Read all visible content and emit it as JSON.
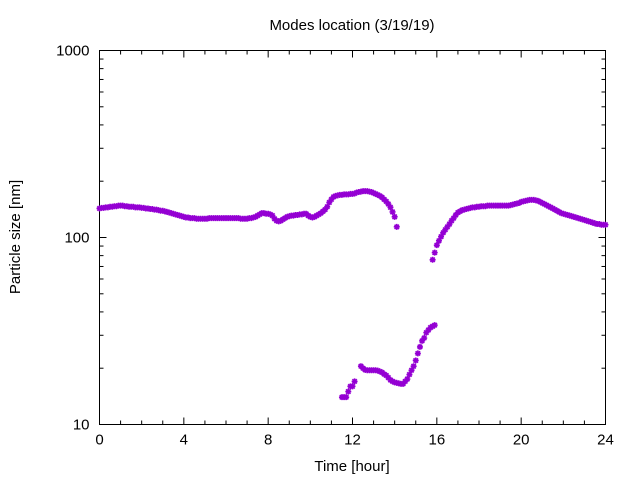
{
  "chart_data": {
    "type": "scatter",
    "title": "Modes location (3/19/19)",
    "xlabel": "Time [hour]",
    "ylabel": "Particle size [nm]",
    "xlim": [
      0,
      24
    ],
    "ylim": [
      10,
      1000
    ],
    "y_scale": "log",
    "x_ticks": [
      0,
      4,
      8,
      12,
      16,
      20,
      24
    ],
    "x_tick_labels": [
      "0",
      "4",
      "8",
      "12",
      "16",
      "20",
      "24"
    ],
    "y_ticks": [
      10,
      100,
      1000
    ],
    "y_tick_labels": [
      "10",
      "100",
      "1000"
    ],
    "grid": false,
    "legend": false,
    "marker_color": "#9400d3",
    "series": [
      {
        "x": [
          0.0,
          0.1,
          0.2,
          0.3,
          0.4,
          0.5,
          0.6,
          0.7,
          0.8,
          0.9,
          1.0,
          1.1,
          1.2,
          1.3,
          1.4,
          1.5,
          1.6,
          1.7,
          1.8,
          1.9,
          2.0,
          2.1,
          2.2,
          2.3,
          2.4,
          2.5,
          2.6,
          2.7,
          2.8,
          2.9,
          3.0,
          3.1,
          3.2,
          3.3,
          3.4,
          3.5,
          3.6,
          3.7,
          3.8,
          3.9,
          4.0,
          4.1,
          4.2,
          4.3,
          4.4,
          4.5,
          4.6,
          4.7,
          4.8,
          4.9,
          5.0,
          5.1,
          5.2,
          5.3,
          5.4,
          5.5,
          5.6,
          5.7,
          5.8,
          5.9,
          6.0,
          6.1,
          6.2,
          6.3,
          6.4,
          6.5,
          6.6,
          6.7,
          6.8,
          6.9,
          7.0,
          7.1,
          7.2,
          7.3,
          7.4,
          7.5,
          7.6,
          7.7,
          7.8,
          7.9,
          8.0,
          8.1,
          8.2,
          8.3,
          8.4,
          8.5,
          8.6,
          8.7,
          8.8,
          8.9,
          9.0,
          9.1,
          9.2,
          9.3,
          9.4,
          9.5,
          9.6,
          9.7,
          9.8,
          9.9,
          10.0,
          10.1,
          10.2,
          10.3,
          10.4,
          10.5,
          10.6,
          10.7,
          10.8,
          10.9,
          11.0,
          11.1,
          11.2,
          11.3,
          11.4,
          11.5,
          11.6,
          11.7,
          11.8,
          11.9,
          12.0,
          12.1,
          12.2,
          12.3,
          12.4,
          12.5,
          12.6,
          12.7,
          12.8,
          12.9,
          13.0,
          13.1,
          13.2,
          13.3,
          13.4,
          13.5,
          13.6,
          13.7,
          13.8,
          13.9,
          14.0,
          14.1,
          15.8,
          15.9,
          16.0,
          16.1,
          16.2,
          16.3,
          16.4,
          16.5,
          16.6,
          16.7,
          16.8,
          16.9,
          17.0,
          17.1,
          17.2,
          17.3,
          17.4,
          17.5,
          17.6,
          17.7,
          17.8,
          17.9,
          18.0,
          18.1,
          18.2,
          18.3,
          18.4,
          18.5,
          18.6,
          18.7,
          18.8,
          18.9,
          19.0,
          19.1,
          19.2,
          19.3,
          19.4,
          19.5,
          19.6,
          19.7,
          19.8,
          19.9,
          20.0,
          20.1,
          20.2,
          20.3,
          20.4,
          20.5,
          20.6,
          20.7,
          20.8,
          20.9,
          21.0,
          21.1,
          21.2,
          21.3,
          21.4,
          21.5,
          21.6,
          21.7,
          21.8,
          21.9,
          22.0,
          22.1,
          22.2,
          22.3,
          22.4,
          22.5,
          22.6,
          22.7,
          22.8,
          22.9,
          23.0,
          23.1,
          23.2,
          23.3,
          23.4,
          23.5,
          23.6,
          23.7,
          23.8,
          23.9,
          24.0
        ],
        "y": [
          143,
          144,
          144,
          145,
          145,
          146,
          146,
          147,
          147,
          148,
          148,
          148,
          147,
          147,
          146,
          146,
          146,
          145,
          145,
          145,
          144,
          144,
          143,
          143,
          142,
          142,
          141,
          141,
          140,
          139,
          139,
          138,
          137,
          136,
          135,
          134,
          133,
          132,
          131,
          130,
          129,
          128,
          128,
          127,
          127,
          127,
          126,
          126,
          126,
          126,
          126,
          126,
          127,
          127,
          127,
          127,
          127,
          127,
          127,
          127,
          127,
          127,
          127,
          127,
          127,
          127,
          127,
          126,
          126,
          126,
          126,
          127,
          127,
          128,
          129,
          131,
          133,
          135,
          135,
          134,
          134,
          133,
          131,
          126,
          123,
          122,
          123,
          125,
          127,
          129,
          130,
          131,
          131,
          132,
          132,
          133,
          133,
          134,
          134,
          131,
          129,
          128,
          129,
          131,
          133,
          135,
          138,
          141,
          146,
          154,
          160,
          165,
          167,
          168,
          169,
          169,
          170,
          170,
          170,
          171,
          171,
          172,
          174,
          175,
          176,
          177,
          177,
          177,
          176,
          175,
          173,
          171,
          169,
          167,
          164,
          160,
          156,
          151,
          145,
          137,
          129,
          114,
          76,
          83,
          91,
          96,
          101,
          106,
          110,
          114,
          118,
          123,
          127,
          132,
          136,
          138,
          140,
          141,
          142,
          143,
          144,
          145,
          145,
          146,
          146,
          147,
          147,
          147,
          148,
          148,
          148,
          148,
          148,
          148,
          148,
          148,
          148,
          148,
          148,
          149,
          150,
          151,
          152,
          153,
          155,
          156,
          157,
          158,
          159,
          159,
          159,
          158,
          157,
          155,
          153,
          151,
          149,
          147,
          145,
          143,
          141,
          139,
          137,
          135,
          134,
          133,
          132,
          131,
          130,
          129,
          128,
          127,
          126,
          125,
          124,
          123,
          122,
          121,
          120,
          119,
          118,
          118,
          117,
          117,
          117
        ]
      },
      {
        "x": [
          11.5,
          11.6,
          11.7,
          11.8,
          11.9,
          12.0,
          12.1,
          12.4,
          12.5,
          12.6,
          12.7,
          12.8,
          12.9,
          13.0,
          13.1,
          13.2,
          13.3,
          13.4,
          13.5,
          13.6,
          13.7,
          13.8,
          13.9,
          14.0,
          14.1,
          14.2,
          14.3,
          14.4,
          14.5,
          14.6,
          14.7,
          14.8,
          14.9,
          15.0,
          15.1,
          15.2,
          15.3,
          15.4,
          15.5,
          15.6,
          15.7,
          15.8,
          15.9
        ],
        "y": [
          14,
          14,
          14,
          15,
          16,
          16,
          17,
          20.5,
          20,
          19.6,
          19.5,
          19.5,
          19.5,
          19.5,
          19.5,
          19.4,
          19.2,
          19,
          18.6,
          18.3,
          17.8,
          17.3,
          17,
          16.8,
          16.7,
          16.6,
          16.5,
          16.5,
          17,
          17.5,
          18.5,
          19.5,
          20.5,
          22,
          24,
          26,
          28,
          29,
          31,
          32,
          33,
          33.5,
          34
        ]
      }
    ]
  }
}
